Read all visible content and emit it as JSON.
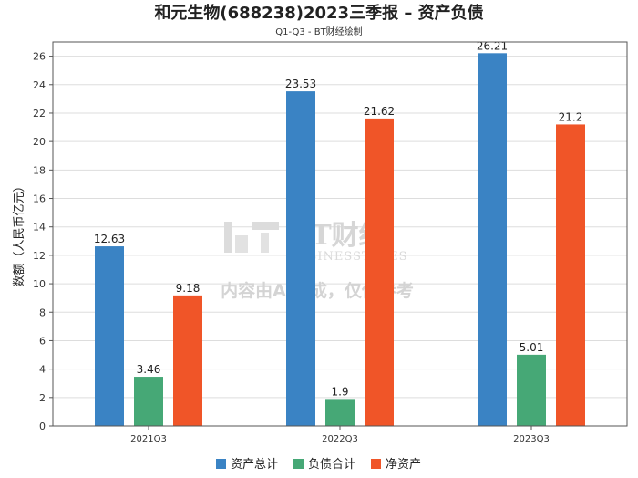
{
  "chart_data": {
    "type": "bar",
    "title": "和元生物(688238)2023三季报 – 资产负债",
    "subtitle": "Q1-Q3 - BT财经绘制",
    "ylabel": "数额（人民币亿元）",
    "xlabel": "",
    "categories": [
      "2021Q3",
      "2022Q3",
      "2023Q3"
    ],
    "ylim": [
      0,
      27
    ],
    "yticks": [
      0,
      2,
      4,
      6,
      8,
      10,
      12,
      14,
      16,
      18,
      20,
      22,
      24,
      26
    ],
    "grid": true,
    "legend_position": "bottom",
    "series": [
      {
        "name": "资产总计",
        "color": "#3a83c4",
        "values": [
          12.63,
          23.53,
          26.21
        ]
      },
      {
        "name": "负债合计",
        "color": "#46a876",
        "values": [
          3.46,
          1.9,
          5.01
        ]
      },
      {
        "name": "净资产",
        "color": "#f05528",
        "values": [
          9.18,
          21.62,
          21.2
        ]
      }
    ]
  },
  "watermark": {
    "logo_text": "BT财经",
    "logo_sub": "BUSINESSTIMES",
    "disclaimer": "内容由AI生成，仅供参考"
  }
}
